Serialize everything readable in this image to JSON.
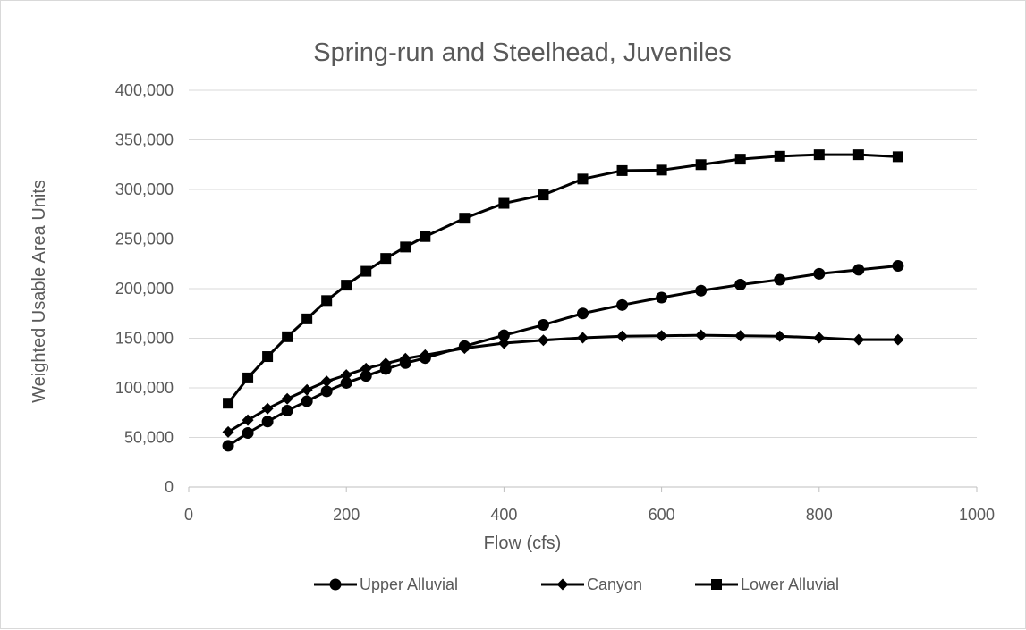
{
  "chart_data": {
    "type": "line",
    "title": "Spring-run and Steelhead, Juveniles",
    "xlabel": "Flow (cfs)",
    "ylabel": "Weighted Usable Area Units",
    "xlim": [
      0,
      1000
    ],
    "ylim": [
      0,
      400000
    ],
    "x_ticks": [
      0,
      200,
      400,
      600,
      800,
      1000
    ],
    "x_tick_labels": [
      "0",
      "200",
      "400",
      "600",
      "800",
      "1000"
    ],
    "y_ticks": [
      0,
      50000,
      100000,
      150000,
      200000,
      250000,
      300000,
      350000,
      400000
    ],
    "y_tick_labels": [
      "0",
      "50,000",
      "100,000",
      "150,000",
      "200,000",
      "250,000",
      "300,000",
      "350,000",
      "400,000"
    ],
    "grid": "horizontal",
    "legend_position": "bottom",
    "x": [
      50,
      75,
      100,
      125,
      150,
      175,
      200,
      225,
      250,
      275,
      300,
      350,
      400,
      450,
      500,
      550,
      600,
      650,
      700,
      750,
      800,
      850,
      900
    ],
    "series": [
      {
        "name": "Upper Alluvial",
        "marker": "circle",
        "color": "#000000",
        "values": [
          41500,
          54500,
          66000,
          77000,
          86500,
          96500,
          105000,
          112000,
          119000,
          125000,
          130000,
          142000,
          153000,
          163500,
          175000,
          183500,
          191000,
          198000,
          204000,
          209000,
          215000,
          219000,
          223000
        ]
      },
      {
        "name": "Canyon",
        "marker": "diamond",
        "color": "#000000",
        "values": [
          55500,
          67500,
          79000,
          89000,
          98000,
          106500,
          113000,
          119500,
          124500,
          129500,
          133000,
          140000,
          145000,
          148000,
          150500,
          152000,
          152500,
          153000,
          152500,
          152000,
          150500,
          148500,
          148500
        ]
      },
      {
        "name": "Lower Alluvial",
        "marker": "square",
        "color": "#000000",
        "values": [
          84500,
          110000,
          131500,
          151500,
          169500,
          188000,
          203500,
          217500,
          230500,
          242000,
          252500,
          271000,
          286000,
          294500,
          310500,
          319000,
          319500,
          325000,
          330500,
          333500,
          335000,
          335000,
          333000
        ]
      }
    ]
  },
  "colors": {
    "gridline": "#d9d9d9",
    "axis": "#bfbfbf",
    "text": "#595959",
    "series": "#000000"
  }
}
